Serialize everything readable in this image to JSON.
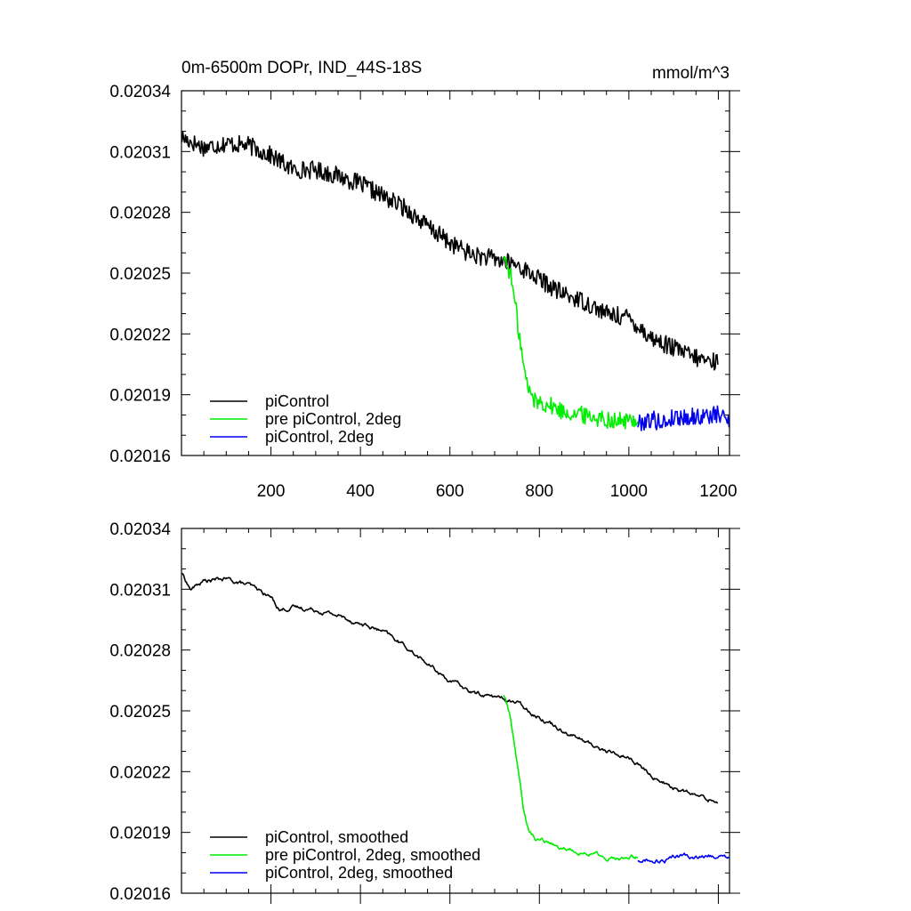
{
  "chart_data": [
    {
      "type": "line",
      "title": "0m-6500m DOPr, IND_44S-18S",
      "units_label": "mmol/m^3",
      "xlim": [
        0,
        1225
      ],
      "ylim": [
        0.02016,
        0.02034
      ],
      "x_ticks": [
        200,
        400,
        600,
        800,
        1000,
        1200
      ],
      "x_tick_labels": [
        "200",
        "400",
        "600",
        "800",
        "1000",
        "1200"
      ],
      "y_ticks": [
        0.02016,
        0.02019,
        0.02022,
        0.02025,
        0.02028,
        0.02031,
        0.02034
      ],
      "y_tick_labels": [
        "0.02016",
        "0.02019",
        "0.02022",
        "0.02025",
        "0.02028",
        "0.02031",
        "0.02034"
      ],
      "legend_position": "bottom-left",
      "series": [
        {
          "name": "piControl",
          "color": "#000000",
          "noise": 4.5e-06,
          "x": [
            1,
            50,
            100,
            150,
            200,
            250,
            300,
            350,
            400,
            450,
            500,
            550,
            600,
            650,
            700,
            750,
            800,
            850,
            900,
            950,
            1000,
            1050,
            1100,
            1150,
            1200
          ],
          "y": [
            0.020317,
            0.020312,
            0.020314,
            0.020313,
            0.020308,
            0.020301,
            0.020301,
            0.020298,
            0.020294,
            0.020288,
            0.020282,
            0.020273,
            0.020265,
            0.020259,
            0.020257,
            0.020254,
            0.020247,
            0.02024,
            0.020236,
            0.02023,
            0.020228,
            0.020218,
            0.020213,
            0.020208,
            0.020206
          ]
        },
        {
          "name": "pre piControl, 2deg",
          "color": "#00ee00",
          "noise": 4.5e-06,
          "x": [
            720,
            735,
            745,
            755,
            765,
            775,
            790,
            810,
            850,
            900,
            950,
            980,
            1000,
            1020
          ],
          "y": [
            0.020258,
            0.02025,
            0.020236,
            0.02022,
            0.020203,
            0.020193,
            0.020187,
            0.020186,
            0.020182,
            0.02018,
            0.020178,
            0.020177,
            0.020177,
            0.020178
          ]
        },
        {
          "name": "piControl, 2deg",
          "color": "#0000ee",
          "noise": 4.5e-06,
          "x": [
            1020,
            1050,
            1080,
            1100,
            1150,
            1200,
            1225
          ],
          "y": [
            0.020176,
            0.020178,
            0.020176,
            0.020179,
            0.020179,
            0.02018,
            0.020178
          ]
        }
      ]
    },
    {
      "type": "line",
      "xlim": [
        0,
        1225
      ],
      "ylim": [
        0.02016,
        0.02034
      ],
      "x_ticks": [
        200,
        400,
        600,
        800,
        1000,
        1200
      ],
      "y_ticks": [
        0.02016,
        0.02019,
        0.02022,
        0.02025,
        0.02028,
        0.02031,
        0.02034
      ],
      "y_tick_labels": [
        "0.02016",
        "0.02019",
        "0.02022",
        "0.02025",
        "0.02028",
        "0.02031",
        "0.02034"
      ],
      "legend_position": "bottom-left",
      "series": [
        {
          "name": "piControl, smoothed",
          "color": "#000000",
          "noise": 1.2e-06,
          "x": [
            1,
            20,
            50,
            100,
            150,
            200,
            220,
            250,
            300,
            350,
            400,
            450,
            500,
            550,
            600,
            650,
            700,
            750,
            800,
            850,
            900,
            950,
            1000,
            1050,
            1100,
            1150,
            1200
          ],
          "y": [
            0.020318,
            0.02031,
            0.020314,
            0.020315,
            0.020312,
            0.020306,
            0.0203,
            0.020301,
            0.0203,
            0.020297,
            0.020293,
            0.020289,
            0.020282,
            0.020273,
            0.020265,
            0.020259,
            0.020257,
            0.020254,
            0.020247,
            0.020241,
            0.020235,
            0.02023,
            0.020227,
            0.020218,
            0.020212,
            0.020208,
            0.020205
          ]
        },
        {
          "name": "pre piControl, 2deg, smoothed",
          "color": "#00ee00",
          "noise": 1.2e-06,
          "x": [
            720,
            735,
            745,
            755,
            765,
            775,
            790,
            810,
            850,
            900,
            950,
            980,
            1000,
            1020
          ],
          "y": [
            0.020258,
            0.020248,
            0.020233,
            0.020217,
            0.0202,
            0.020192,
            0.020187,
            0.020186,
            0.020182,
            0.02018,
            0.020178,
            0.020177,
            0.020177,
            0.020178
          ]
        },
        {
          "name": "piControl, 2deg, smoothed",
          "color": "#0000ee",
          "noise": 1.2e-06,
          "x": [
            1020,
            1050,
            1080,
            1100,
            1150,
            1200,
            1225
          ],
          "y": [
            0.020176,
            0.020177,
            0.020176,
            0.020178,
            0.020178,
            0.020179,
            0.020177
          ]
        }
      ]
    }
  ]
}
